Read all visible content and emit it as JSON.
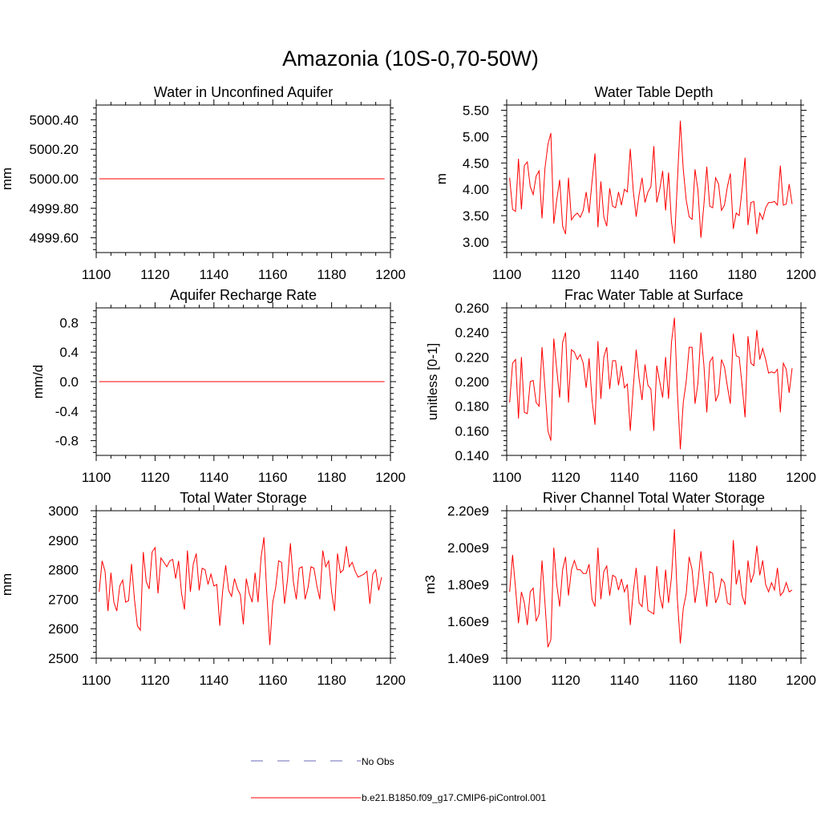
{
  "title": "Amazonia (10S-0,70-50W)",
  "chart_data": [
    {
      "type": "line",
      "title": "Water in Unconfined Aquifer",
      "xlabel": "",
      "ylabel": "mm",
      "xlim": [
        1100,
        1200
      ],
      "ylim": [
        4999.5,
        5000.5
      ],
      "xticks": [
        1100,
        1120,
        1140,
        1160,
        1180,
        1200
      ],
      "yticks": [
        4999.6,
        4999.8,
        5000.0,
        5000.2,
        5000.4
      ],
      "ytick_labels": [
        "4999.60",
        "4999.80",
        "5000.00",
        "5000.20",
        "5000.40"
      ],
      "series": [
        {
          "name": "b.e21.B1850.f09_g17.CMIP6-piControl.001",
          "x_start": 1101,
          "x_step": 1,
          "values": [
            5000,
            5000,
            5000,
            5000,
            5000,
            5000,
            5000,
            5000,
            5000,
            5000,
            5000,
            5000,
            5000,
            5000,
            5000,
            5000,
            5000,
            5000,
            5000,
            5000,
            5000,
            5000,
            5000,
            5000,
            5000,
            5000,
            5000,
            5000,
            5000,
            5000,
            5000,
            5000,
            5000,
            5000,
            5000,
            5000,
            5000,
            5000,
            5000,
            5000,
            5000,
            5000,
            5000,
            5000,
            5000,
            5000,
            5000,
            5000,
            5000,
            5000,
            5000,
            5000,
            5000,
            5000,
            5000,
            5000,
            5000,
            5000,
            5000,
            5000,
            5000,
            5000,
            5000,
            5000,
            5000,
            5000,
            5000,
            5000,
            5000,
            5000,
            5000,
            5000,
            5000,
            5000,
            5000,
            5000,
            5000,
            5000,
            5000,
            5000,
            5000,
            5000,
            5000,
            5000,
            5000,
            5000,
            5000,
            5000,
            5000,
            5000,
            5000,
            5000,
            5000,
            5000,
            5000,
            5000,
            5000,
            5000
          ]
        }
      ]
    },
    {
      "type": "line",
      "title": "Water Table Depth",
      "xlabel": "",
      "ylabel": "m",
      "xlim": [
        1100,
        1200
      ],
      "ylim": [
        2.8,
        5.6
      ],
      "xticks": [
        1100,
        1120,
        1140,
        1160,
        1180,
        1200
      ],
      "yticks": [
        3.0,
        3.5,
        4.0,
        4.5,
        5.0,
        5.5
      ],
      "ytick_labels": [
        "3.00",
        "3.50",
        "4.00",
        "4.50",
        "5.00",
        "5.50"
      ],
      "series": [
        {
          "name": "b.e21.B1850.f09_g17.CMIP6-piControl.001",
          "x_start": 1101,
          "x_step": 1,
          "values": [
            4.22,
            3.62,
            3.58,
            4.58,
            3.62,
            4.45,
            4.52,
            4.05,
            3.9,
            4.25,
            4.35,
            3.45,
            4.4,
            4.85,
            5.07,
            3.35,
            3.8,
            4.18,
            3.3,
            3.15,
            4.22,
            3.42,
            3.5,
            3.55,
            3.47,
            3.6,
            3.95,
            3.55,
            4.15,
            4.68,
            3.28,
            4.15,
            3.48,
            3.3,
            4.02,
            3.68,
            3.65,
            3.95,
            3.7,
            4.0,
            3.95,
            4.77,
            3.98,
            3.48,
            3.9,
            4.22,
            3.75,
            3.95,
            4.05,
            4.82,
            3.75,
            4.0,
            4.35,
            3.6,
            4.32,
            3.38,
            2.97,
            4.15,
            5.3,
            4.38,
            3.8,
            3.48,
            3.43,
            4.38,
            3.98,
            3.08,
            3.7,
            4.43,
            3.68,
            3.65,
            4.22,
            4.1,
            3.6,
            3.7,
            4.05,
            4.3,
            3.25,
            3.55,
            3.5,
            4.0,
            4.6,
            3.32,
            3.75,
            3.77,
            3.15,
            3.55,
            3.43,
            3.65,
            3.75,
            3.75,
            3.77,
            3.7,
            4.45,
            3.7,
            3.72,
            4.1,
            3.72
          ]
        }
      ]
    },
    {
      "type": "line",
      "title": "Aquifer Recharge Rate",
      "xlabel": "",
      "ylabel": "mm/d",
      "xlim": [
        1100,
        1200
      ],
      "ylim": [
        -1.0,
        1.0
      ],
      "xticks": [
        1100,
        1120,
        1140,
        1160,
        1180,
        1200
      ],
      "yticks": [
        -0.8,
        -0.4,
        0.0,
        0.4,
        0.8
      ],
      "ytick_labels": [
        "-0.8",
        "-0.4",
        "0.0",
        "0.4",
        "0.8"
      ],
      "series": [
        {
          "name": "b.e21.B1850.f09_g17.CMIP6-piControl.001",
          "x_start": 1101,
          "x_step": 1,
          "values": [
            0,
            0,
            0,
            0,
            0,
            0,
            0,
            0,
            0,
            0,
            0,
            0,
            0,
            0,
            0,
            0,
            0,
            0,
            0,
            0,
            0,
            0,
            0,
            0,
            0,
            0,
            0,
            0,
            0,
            0,
            0,
            0,
            0,
            0,
            0,
            0,
            0,
            0,
            0,
            0,
            0,
            0,
            0,
            0,
            0,
            0,
            0,
            0,
            0,
            0,
            0,
            0,
            0,
            0,
            0,
            0,
            0,
            0,
            0,
            0,
            0,
            0,
            0,
            0,
            0,
            0,
            0,
            0,
            0,
            0,
            0,
            0,
            0,
            0,
            0,
            0,
            0,
            0,
            0,
            0,
            0,
            0,
            0,
            0,
            0,
            0,
            0,
            0,
            0,
            0,
            0,
            0,
            0,
            0,
            0,
            0,
            0,
            0
          ]
        }
      ]
    },
    {
      "type": "line",
      "title": "Frac Water Table at Surface",
      "xlabel": "",
      "ylabel": "unitless [0-1]",
      "xlim": [
        1100,
        1200
      ],
      "ylim": [
        0.14,
        0.26
      ],
      "xticks": [
        1100,
        1120,
        1140,
        1160,
        1180,
        1200
      ],
      "yticks": [
        0.14,
        0.16,
        0.18,
        0.2,
        0.22,
        0.24,
        0.26
      ],
      "ytick_labels": [
        "0.140",
        "0.160",
        "0.180",
        "0.200",
        "0.220",
        "0.240",
        "0.260"
      ],
      "series": [
        {
          "name": "b.e21.B1850.f09_g17.CMIP6-piControl.001",
          "x_start": 1101,
          "x_step": 1,
          "values": [
            0.183,
            0.215,
            0.218,
            0.17,
            0.22,
            0.175,
            0.174,
            0.2,
            0.201,
            0.183,
            0.18,
            0.228,
            0.195,
            0.16,
            0.152,
            0.235,
            0.21,
            0.187,
            0.232,
            0.24,
            0.183,
            0.226,
            0.224,
            0.218,
            0.222,
            0.215,
            0.195,
            0.219,
            0.185,
            0.165,
            0.233,
            0.186,
            0.22,
            0.228,
            0.194,
            0.217,
            0.217,
            0.197,
            0.213,
            0.195,
            0.198,
            0.16,
            0.195,
            0.226,
            0.202,
            0.185,
            0.214,
            0.197,
            0.194,
            0.16,
            0.213,
            0.2,
            0.187,
            0.22,
            0.186,
            0.232,
            0.252,
            0.192,
            0.145,
            0.183,
            0.2,
            0.228,
            0.228,
            0.182,
            0.199,
            0.24,
            0.214,
            0.175,
            0.216,
            0.22,
            0.184,
            0.19,
            0.218,
            0.212,
            0.196,
            0.182,
            0.239,
            0.221,
            0.22,
            0.197,
            0.171,
            0.237,
            0.215,
            0.213,
            0.242,
            0.218,
            0.227,
            0.218,
            0.207,
            0.208,
            0.207,
            0.21,
            0.175,
            0.215,
            0.21,
            0.191,
            0.211
          ]
        }
      ]
    },
    {
      "type": "line",
      "title": "Total Water Storage",
      "xlabel": "",
      "ylabel": "mm",
      "xlim": [
        1100,
        1200
      ],
      "ylim": [
        2500,
        3000
      ],
      "xticks": [
        1100,
        1120,
        1140,
        1160,
        1180,
        1200
      ],
      "yticks": [
        2500,
        2600,
        2700,
        2800,
        2900,
        3000
      ],
      "ytick_labels": [
        "2500",
        "2600",
        "2700",
        "2800",
        "2900",
        "3000"
      ],
      "series": [
        {
          "name": "b.e21.B1850.f09_g17.CMIP6-piControl.001",
          "x_start": 1101,
          "x_step": 1,
          "values": [
            2725,
            2830,
            2795,
            2660,
            2790,
            2690,
            2660,
            2745,
            2765,
            2690,
            2695,
            2820,
            2700,
            2610,
            2595,
            2860,
            2760,
            2735,
            2860,
            2875,
            2720,
            2840,
            2825,
            2810,
            2830,
            2835,
            2770,
            2830,
            2720,
            2665,
            2865,
            2725,
            2820,
            2855,
            2730,
            2805,
            2800,
            2750,
            2785,
            2745,
            2750,
            2610,
            2730,
            2815,
            2730,
            2710,
            2770,
            2735,
            2715,
            2615,
            2770,
            2720,
            2690,
            2790,
            2690,
            2840,
            2910,
            2715,
            2545,
            2690,
            2740,
            2830,
            2825,
            2685,
            2765,
            2890,
            2760,
            2700,
            2805,
            2810,
            2700,
            2740,
            2810,
            2805,
            2745,
            2700,
            2865,
            2810,
            2830,
            2725,
            2660,
            2855,
            2790,
            2800,
            2880,
            2810,
            2825,
            2795,
            2775,
            2780,
            2785,
            2795,
            2685,
            2785,
            2800,
            2730,
            2775
          ]
        }
      ]
    },
    {
      "type": "line",
      "title": "River Channel Total Water Storage",
      "xlabel": "",
      "ylabel": "m3",
      "xlim": [
        1100,
        1200
      ],
      "ylim": [
        1400000000.0,
        2200000000.0
      ],
      "xticks": [
        1100,
        1120,
        1140,
        1160,
        1180,
        1200
      ],
      "yticks": [
        1400000000.0,
        1600000000.0,
        1800000000.0,
        2000000000.0,
        2200000000.0
      ],
      "ytick_labels": [
        "1.40e9",
        "1.60e9",
        "1.80e9",
        "2.00e9",
        "2.20e9"
      ],
      "series": [
        {
          "name": "b.e21.B1850.f09_g17.CMIP6-piControl.001",
          "x_start": 1101,
          "x_step": 1,
          "values": [
            1760000000.0,
            1960000000.0,
            1780000000.0,
            1590000000.0,
            1760000000.0,
            1700000000.0,
            1580000000.0,
            1760000000.0,
            1780000000.0,
            1600000000.0,
            1640000000.0,
            1930000000.0,
            1700000000.0,
            1460000000.0,
            1500000000.0,
            2000000000.0,
            1800000000.0,
            1680000000.0,
            1880000000.0,
            1950000000.0,
            1740000000.0,
            1880000000.0,
            1930000000.0,
            1880000000.0,
            1880000000.0,
            1860000000.0,
            1860000000.0,
            1910000000.0,
            1720000000.0,
            1680000000.0,
            2000000000.0,
            1720000000.0,
            1870000000.0,
            1900000000.0,
            1740000000.0,
            1850000000.0,
            1840000000.0,
            1770000000.0,
            1830000000.0,
            1760000000.0,
            1800000000.0,
            1580000000.0,
            1760000000.0,
            1890000000.0,
            1700000000.0,
            1680000000.0,
            1850000000.0,
            1660000000.0,
            1650000000.0,
            1640000000.0,
            1900000000.0,
            1740000000.0,
            1670000000.0,
            1880000000.0,
            1700000000.0,
            1840000000.0,
            2100000000.0,
            1720000000.0,
            1480000000.0,
            1670000000.0,
            1750000000.0,
            1950000000.0,
            1880000000.0,
            1700000000.0,
            1810000000.0,
            1980000000.0,
            1820000000.0,
            1680000000.0,
            1870000000.0,
            1860000000.0,
            1700000000.0,
            1740000000.0,
            1830000000.0,
            1810000000.0,
            1700000000.0,
            1690000000.0,
            2040000000.0,
            1800000000.0,
            1880000000.0,
            1740000000.0,
            1690000000.0,
            1930000000.0,
            1810000000.0,
            1860000000.0,
            2010000000.0,
            1850000000.0,
            1930000000.0,
            1800000000.0,
            1760000000.0,
            1810000000.0,
            1770000000.0,
            1890000000.0,
            1740000000.0,
            1760000000.0,
            1810000000.0,
            1760000000.0,
            1770000000.0
          ]
        }
      ]
    }
  ],
  "legend": {
    "entries": [
      {
        "label": "No Obs",
        "color": "#6a6ab8",
        "style": "dashed"
      },
      {
        "label": "b.e21.B1850.f09_g17.CMIP6-piControl.001",
        "color": "#ff0000",
        "style": "solid"
      }
    ]
  },
  "colors": {
    "model_line": "#ff0000",
    "obs_line": "#6a6ab8",
    "axis": "#000000"
  }
}
